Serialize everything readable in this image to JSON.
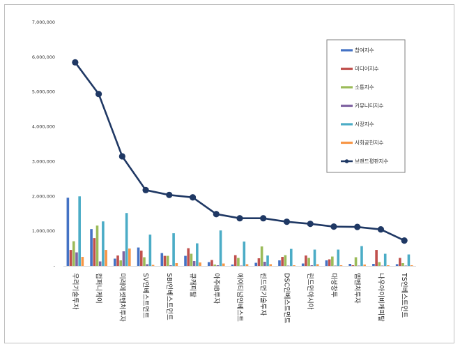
{
  "chart_data": {
    "type": "bar",
    "title": "",
    "xlabel": "",
    "ylabel": "",
    "ylim": [
      0,
      7000000
    ],
    "y_ticks": [
      "-",
      "1,000,000",
      "2,000,000",
      "3,000,000",
      "4,000,000",
      "5,000,000",
      "6,000,000",
      "7,000,000"
    ],
    "legend_position": "top-right",
    "grid": false,
    "categories": [
      "우리기술투자",
      "컴퍼니케이",
      "미래에셋벤처투자",
      "SV인베스트먼트",
      "SBI인베스트먼트",
      "큐캐피탈",
      "아주IB투자",
      "에이티넘인베스트",
      "린드먼기술투자",
      "DSC인베스트먼트",
      "린드먼아시아",
      "대성창투",
      "엠벤처투자",
      "나우아이비캐피탈",
      "TS인베스트먼트"
    ],
    "series": [
      {
        "name": "참여지수",
        "type": "bar",
        "color": "#4472C4",
        "values": [
          1960000,
          1060000,
          210000,
          530000,
          370000,
          290000,
          110000,
          40000,
          90000,
          160000,
          70000,
          160000,
          60000,
          60000,
          50000
        ]
      },
      {
        "name": "미디어지수",
        "type": "bar",
        "color": "#C0504D",
        "values": [
          460000,
          800000,
          300000,
          440000,
          290000,
          510000,
          170000,
          310000,
          220000,
          260000,
          300000,
          190000,
          20000,
          460000,
          230000
        ]
      },
      {
        "name": "소통지수",
        "type": "bar",
        "color": "#9BBB59",
        "values": [
          710000,
          1160000,
          160000,
          250000,
          290000,
          350000,
          40000,
          230000,
          560000,
          310000,
          230000,
          270000,
          250000,
          110000,
          80000
        ]
      },
      {
        "name": "커뮤니티지수",
        "type": "bar",
        "color": "#8064A2",
        "values": [
          390000,
          130000,
          420000,
          50000,
          20000,
          140000,
          20000,
          10000,
          120000,
          10000,
          20000,
          10000,
          10000,
          10000,
          10000
        ]
      },
      {
        "name": "시장지수",
        "type": "bar",
        "color": "#4BACC6",
        "values": [
          2000000,
          1280000,
          1520000,
          900000,
          940000,
          650000,
          1020000,
          700000,
          300000,
          490000,
          470000,
          470000,
          570000,
          350000,
          330000
        ]
      },
      {
        "name": "사회공헌지수",
        "type": "bar",
        "color": "#F79646",
        "values": [
          260000,
          460000,
          500000,
          30000,
          80000,
          100000,
          70000,
          50000,
          50000,
          20000,
          50000,
          20000,
          40000,
          20000,
          20000
        ]
      },
      {
        "name": "브랜드평판지수",
        "type": "line",
        "color": "#1F3864",
        "values": [
          5850000,
          4940000,
          3150000,
          2180000,
          2040000,
          1970000,
          1490000,
          1370000,
          1370000,
          1270000,
          1210000,
          1130000,
          1120000,
          1050000,
          730000
        ]
      }
    ]
  }
}
